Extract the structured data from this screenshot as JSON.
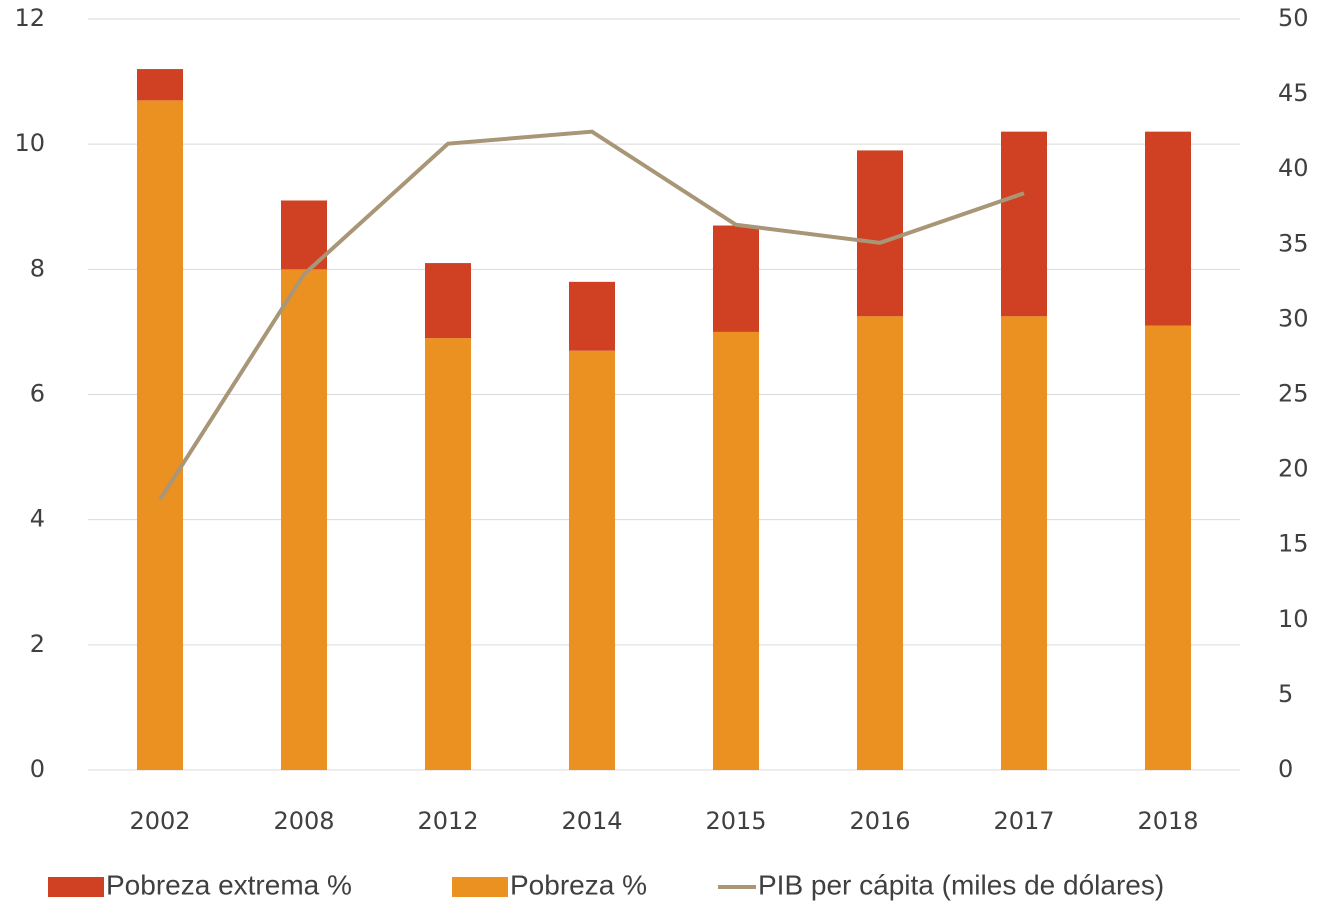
{
  "chart_data": {
    "type": "bar",
    "categories": [
      "2002",
      "2008",
      "2012",
      "2014",
      "2015",
      "2016",
      "2017",
      "2018"
    ],
    "series": [
      {
        "name": "Pobreza extrema %",
        "color": "#cf4122",
        "values": [
          0.5,
          1.1,
          1.2,
          1.1,
          1.7,
          2.65,
          2.95,
          3.1
        ]
      },
      {
        "name": "Pobreza %",
        "color": "#eb9122",
        "values": [
          10.7,
          8.0,
          6.9,
          6.7,
          7.0,
          7.25,
          7.25,
          7.1
        ]
      },
      {
        "name": "PIB per cápita (miles de dólares)",
        "color": "#a89677",
        "type": "line",
        "axis": "y2",
        "values": [
          18,
          33,
          41.7,
          42.5,
          36.3,
          35.1,
          38.4,
          null
        ]
      }
    ],
    "ylim": [
      0,
      12
    ],
    "yticks": [
      0,
      2,
      4,
      6,
      8,
      10,
      12
    ],
    "y2lim": [
      0,
      50
    ],
    "y2ticks": [
      0,
      5,
      10,
      15,
      20,
      25,
      30,
      35,
      40,
      45,
      50
    ],
    "grid": true,
    "legend": "bottom"
  }
}
